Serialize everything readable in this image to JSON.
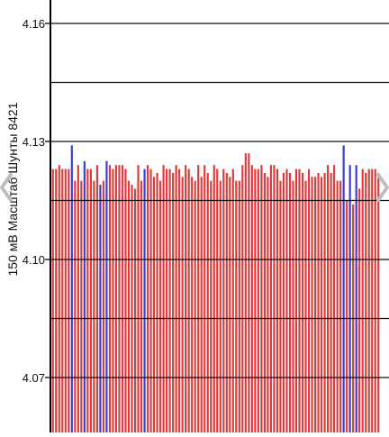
{
  "chart_data": {
    "type": "bar",
    "ylabel": "150 мВ Масштаб   Шунты 8421",
    "ylim": [
      4.06,
      4.17
    ],
    "yticks": [
      4.07,
      4.1,
      4.13,
      4.16
    ],
    "ytick_labels": [
      "4.07",
      "4.10",
      "4.13",
      "4.16"
    ],
    "gridlines": [
      4.07,
      4.085,
      4.1,
      4.115,
      4.13,
      4.145,
      4.16
    ],
    "grid": true,
    "colors": {
      "default": "#e23a3a",
      "highlight": "#3c3cd0",
      "grid": "#111111",
      "axis": "#000000"
    },
    "values": [
      4.123,
      4.123,
      4.124,
      4.123,
      4.123,
      4.123,
      4.129,
      4.12,
      4.124,
      4.12,
      4.125,
      4.123,
      4.123,
      4.12,
      4.124,
      4.119,
      4.12,
      4.125,
      4.124,
      4.123,
      4.124,
      4.124,
      4.124,
      4.123,
      4.12,
      4.119,
      4.118,
      4.124,
      4.12,
      4.123,
      4.124,
      4.123,
      4.121,
      4.122,
      4.12,
      4.124,
      4.123,
      4.123,
      4.122,
      4.124,
      4.123,
      4.121,
      4.124,
      4.123,
      4.121,
      4.12,
      4.124,
      4.121,
      4.124,
      4.122,
      4.12,
      4.124,
      4.123,
      4.12,
      4.123,
      4.122,
      4.121,
      4.123,
      4.12,
      4.12,
      4.124,
      4.127,
      4.127,
      4.124,
      4.123,
      4.123,
      4.124,
      4.122,
      4.121,
      4.124,
      4.124,
      4.123,
      4.12,
      4.122,
      4.123,
      4.122,
      4.12,
      4.123,
      4.123,
      4.122,
      4.12,
      4.123,
      4.121,
      4.121,
      4.122,
      4.121,
      4.122,
      4.124,
      4.122,
      4.124,
      4.12,
      4.12,
      4.129,
      4.115,
      4.124,
      4.114,
      4.124,
      4.118,
      4.123,
      4.122,
      4.123,
      4.123,
      4.123,
      4.122
    ],
    "highlight_indices": [
      6,
      10,
      15,
      17,
      29,
      92,
      94,
      96
    ]
  },
  "nav": {
    "left_icon": "chevron-left-icon",
    "right_icon": "chevron-right-icon"
  }
}
